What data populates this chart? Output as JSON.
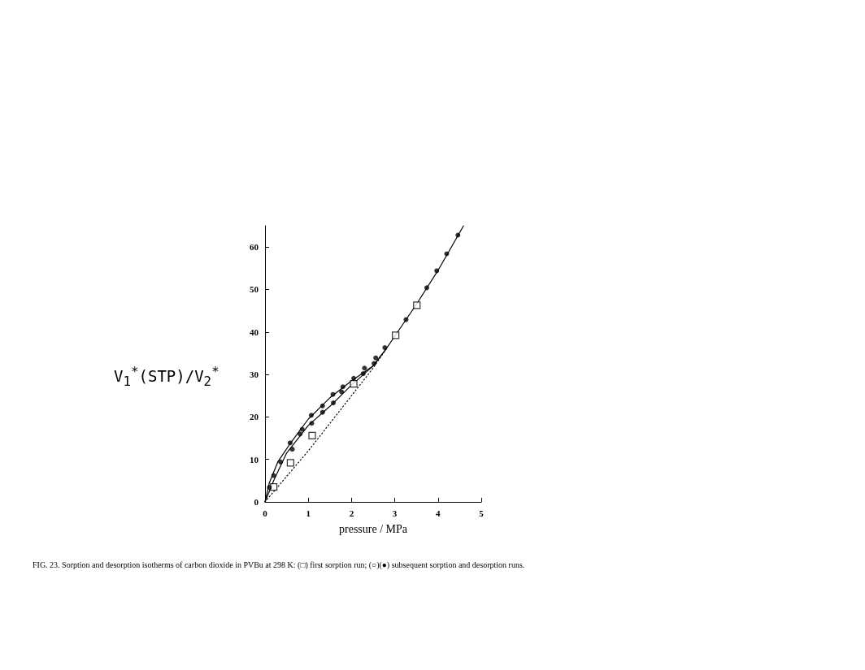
{
  "chart_data": {
    "type": "scatter",
    "xlabel": "pressure / MPa",
    "ylabel": "V$_{1}$$^{*}$(STP)/V$_{2}$$^{*}$",
    "xlim": [
      0,
      5
    ],
    "xticks": [
      0,
      1,
      2,
      3,
      4,
      5
    ],
    "ylim": [
      0,
      65
    ],
    "yticks": [
      0,
      10,
      20,
      30,
      40,
      50,
      60
    ],
    "grid": false,
    "annotations": [
      "FIG. 23. Sorption and desorption isotherms of carbon dioxide in PVBu at 298 K: (□) first sorption run; (○)(●) subsequent sorption and desorption runs."
    ],
    "series": [
      {
        "marker": "square",
        "color": "#000000",
        "x": [
          0.2,
          0.59,
          1.09,
          2.05,
          3.02,
          3.51
        ],
        "values": [
          3.5,
          9.2,
          15.6,
          27.8,
          39.2,
          46.3
        ]
      },
      {
        "marker": "circle",
        "color": "#000000",
        "x": [
          0.1,
          0.2,
          0.36,
          0.58,
          0.86,
          1.07,
          1.33,
          1.57,
          1.8,
          2.05,
          2.3,
          2.56,
          2.77,
          3.26,
          3.74,
          3.97,
          4.2,
          4.46
        ],
        "values": [
          3.4,
          6.2,
          9.4,
          13.9,
          17.1,
          20.4,
          22.6,
          25.3,
          27.1,
          29.1,
          31.5,
          33.9,
          36.3,
          42.9,
          50.4,
          54.4,
          58.4,
          62.8
        ]
      },
      {
        "marker": "circle",
        "color": "#000000",
        "x": [
          0.63,
          0.81,
          1.08,
          1.33,
          1.58,
          1.77,
          2.27,
          2.52
        ],
        "values": [
          12.4,
          16.0,
          18.5,
          21.1,
          23.3,
          25.9,
          30.2,
          32.6
        ]
      },
      {
        "type": "line",
        "marker": "none",
        "line_style": "solid",
        "color": "#000000",
        "x": [
          0,
          0.1,
          0.3,
          0.6,
          1.0,
          1.5,
          2.0,
          2.5,
          2.8,
          3.0,
          3.5,
          4.0,
          4.59
        ],
        "values": [
          0,
          4.5,
          9.5,
          14,
          19.5,
          24.5,
          28.5,
          32,
          36,
          39,
          46.5,
          54.5,
          65
        ]
      },
      {
        "type": "line",
        "marker": "none",
        "line_style": "solid",
        "color": "#000000",
        "x": [
          0,
          0.2,
          0.5,
          1.0,
          1.5,
          2.0,
          2.5,
          2.8
        ],
        "values": [
          0,
          5,
          11.5,
          18,
          22.5,
          27.5,
          32,
          36
        ]
      },
      {
        "type": "line",
        "marker": "none",
        "line_style": "dotted",
        "color": "#000000",
        "x": [
          0,
          0.5,
          1.0,
          1.5,
          2.0,
          2.5,
          2.8
        ],
        "values": [
          0,
          6,
          12,
          18.5,
          25,
          31.5,
          36
        ]
      }
    ]
  }
}
